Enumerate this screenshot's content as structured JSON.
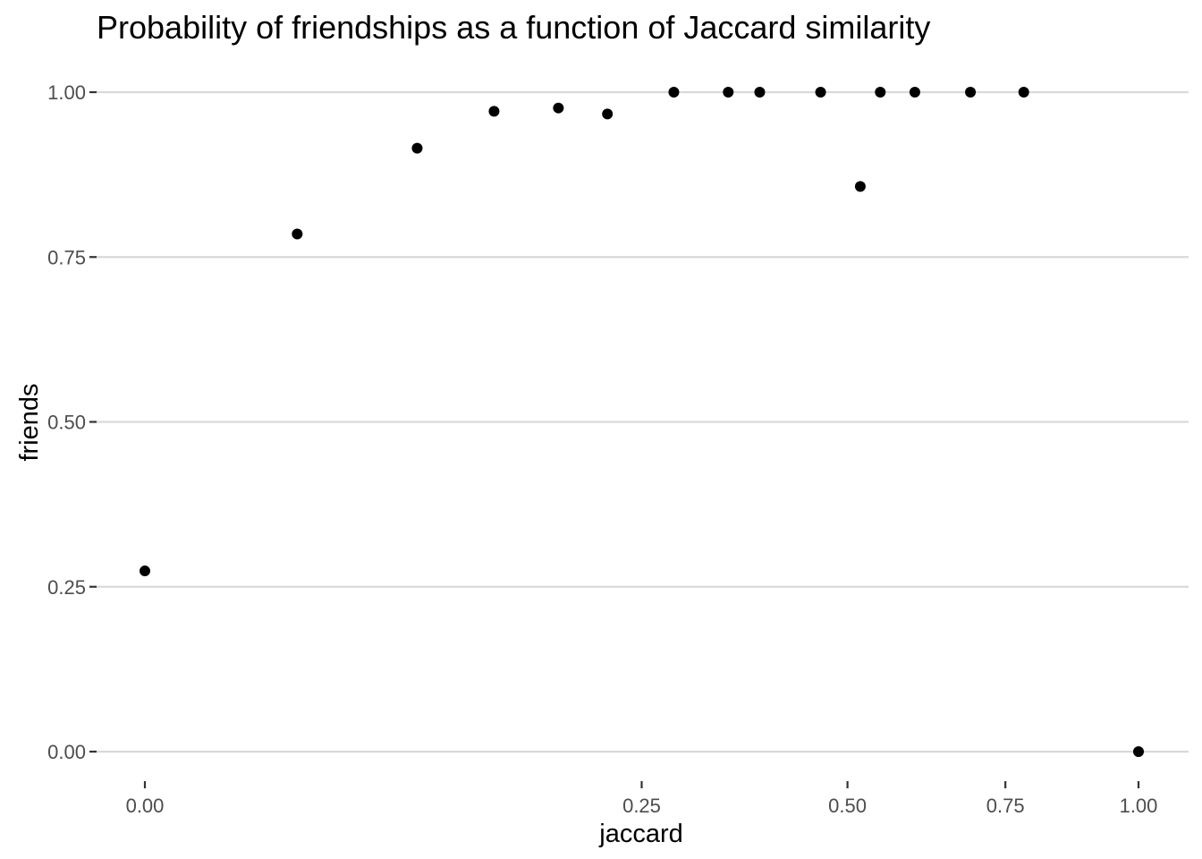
{
  "chart_data": {
    "type": "scatter",
    "title": "Probability of friendships as a function of Jaccard similarity",
    "xlabel": "jaccard",
    "ylabel": "friends",
    "x_scale": "sqrt",
    "xlim": [
      0,
      1
    ],
    "ylim": [
      0,
      1
    ],
    "x_ticks": [
      {
        "value": 0,
        "label": "0.00"
      },
      {
        "value": 0.25,
        "label": "0.25"
      },
      {
        "value": 0.5,
        "label": "0.50"
      },
      {
        "value": 0.75,
        "label": "0.75"
      },
      {
        "value": 1,
        "label": "1.00"
      }
    ],
    "y_ticks": [
      {
        "value": 0,
        "label": "0.00"
      },
      {
        "value": 0.25,
        "label": "0.25"
      },
      {
        "value": 0.5,
        "label": "0.50"
      },
      {
        "value": 0.75,
        "label": "0.75"
      },
      {
        "value": 1,
        "label": "1.00"
      }
    ],
    "grid": "horizontal major",
    "legend": "none",
    "point_color": "#000000",
    "grid_color": "#d9d9d9",
    "points": [
      {
        "x": 0.0,
        "y": 0.274
      },
      {
        "x": 0.0235,
        "y": 0.785
      },
      {
        "x": 0.0751,
        "y": 0.915
      },
      {
        "x": 0.1235,
        "y": 0.971
      },
      {
        "x": 0.1732,
        "y": 0.976
      },
      {
        "x": 0.2167,
        "y": 0.967
      },
      {
        "x": 0.2834,
        "y": 1.0
      },
      {
        "x": 0.3447,
        "y": 1.0
      },
      {
        "x": 0.3829,
        "y": 1.0
      },
      {
        "x": 0.4625,
        "y": 1.0
      },
      {
        "x": 0.5184,
        "y": 0.857
      },
      {
        "x": 0.5478,
        "y": 1.0
      },
      {
        "x": 0.6005,
        "y": 1.0
      },
      {
        "x": 0.6903,
        "y": 1.0
      },
      {
        "x": 0.7824,
        "y": 1.0
      },
      {
        "x": 1.0,
        "y": 0.0
      }
    ]
  }
}
